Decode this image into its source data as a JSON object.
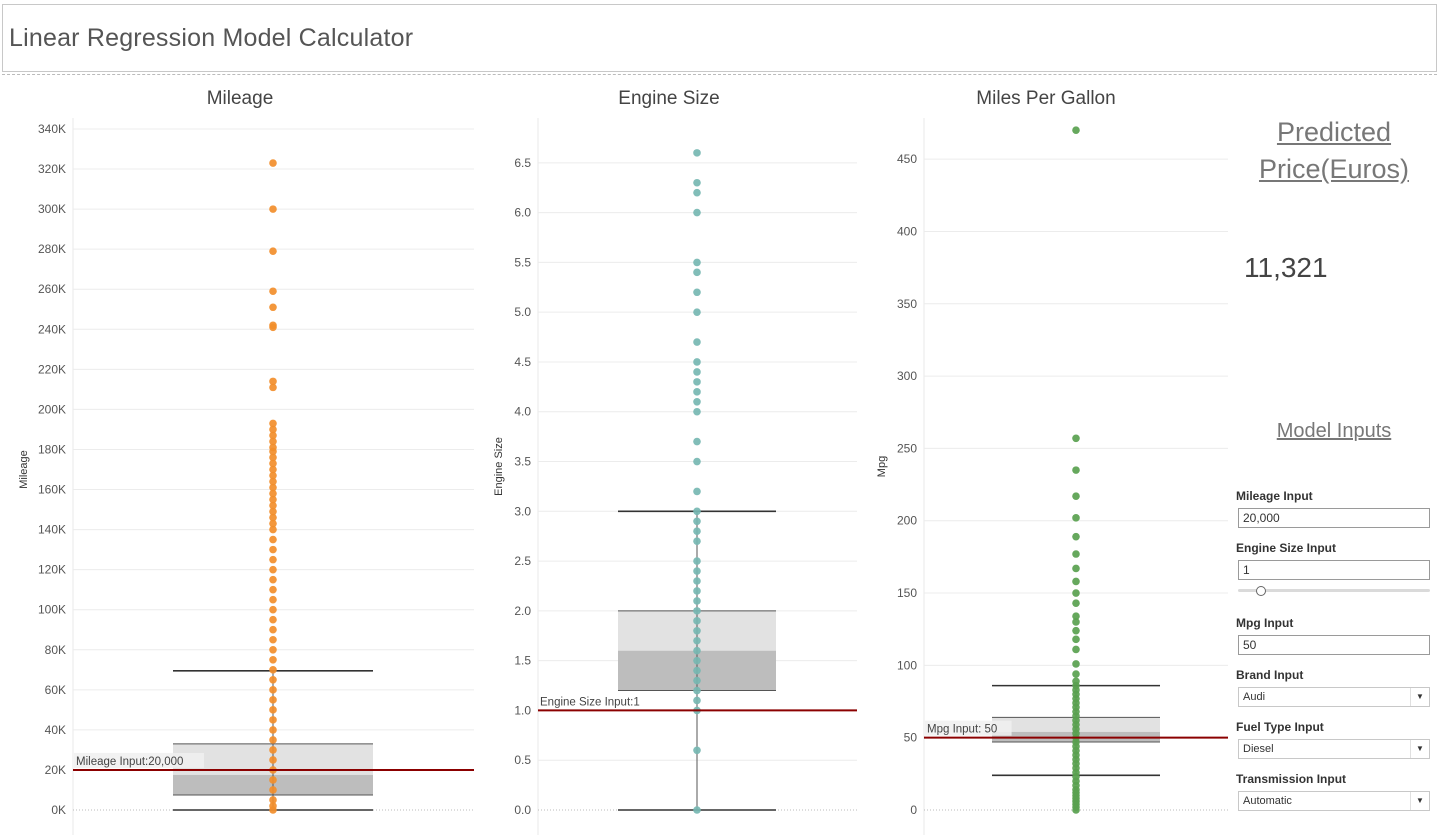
{
  "app_title": "Linear Regression Model Calculator",
  "chart_data": [
    {
      "type": "box",
      "title": "Mileage",
      "ylabel": "Mileage",
      "ylim": [
        0,
        340000
      ],
      "y_ticks": [
        0,
        20000,
        40000,
        60000,
        80000,
        100000,
        120000,
        140000,
        160000,
        180000,
        200000,
        220000,
        240000,
        260000,
        280000,
        300000,
        320000,
        340000
      ],
      "y_tick_labels": [
        "0K",
        "20K",
        "40K",
        "60K",
        "80K",
        "100K",
        "120K",
        "140K",
        "160K",
        "180K",
        "200K",
        "220K",
        "240K",
        "260K",
        "280K",
        "300K",
        "320K",
        "340K"
      ],
      "point_color": "#f28e2b",
      "box": {
        "min": 0,
        "q1": 7500,
        "median": 17500,
        "q3": 33000,
        "max": 69500
      },
      "points": [
        0,
        2000,
        5000,
        10000,
        15000,
        20000,
        25000,
        30000,
        35000,
        40000,
        45000,
        50000,
        55000,
        60000,
        65000,
        70000,
        75000,
        80000,
        85000,
        90000,
        95000,
        100000,
        105000,
        110000,
        115000,
        120000,
        125000,
        130000,
        135000,
        140000,
        143000,
        146000,
        149000,
        152000,
        155000,
        158000,
        161000,
        164000,
        167000,
        170000,
        173000,
        176000,
        179000,
        181000,
        184000,
        187000,
        190000,
        193000,
        211000,
        214000,
        241000,
        242000,
        251000,
        259000,
        279000,
        300000,
        323000
      ],
      "reference_line": {
        "value": 20000,
        "label": "Mileage Input:20,000",
        "color": "#8b0000"
      }
    },
    {
      "type": "box",
      "title": "Engine Size",
      "ylabel": "Engine Size",
      "ylim": [
        0,
        6.9
      ],
      "y_ticks": [
        0,
        0.5,
        1,
        1.5,
        2,
        2.5,
        3,
        3.5,
        4,
        4.5,
        5,
        5.5,
        6,
        6.5
      ],
      "y_tick_labels": [
        "0.0",
        "0.5",
        "1.0",
        "1.5",
        "2.0",
        "2.5",
        "3.0",
        "3.5",
        "4.0",
        "4.5",
        "5.0",
        "5.5",
        "6.0",
        "6.5"
      ],
      "point_color": "#76b7b2",
      "box": {
        "min": 0,
        "q1": 1.2,
        "median": 1.6,
        "q3": 2.0,
        "max": 3.0
      },
      "points": [
        0,
        0.6,
        1.0,
        1.1,
        1.2,
        1.3,
        1.4,
        1.5,
        1.6,
        1.7,
        1.8,
        1.9,
        2.0,
        2.1,
        2.2,
        2.3,
        2.4,
        2.5,
        2.7,
        2.8,
        2.9,
        3.0,
        3.2,
        3.5,
        3.7,
        4.0,
        4.1,
        4.2,
        4.3,
        4.4,
        4.5,
        4.7,
        5.0,
        5.2,
        5.4,
        5.5,
        6.0,
        6.2,
        6.3,
        6.6
      ],
      "reference_line": {
        "value": 1,
        "label": "Engine Size Input:1",
        "color": "#8b0000"
      }
    },
    {
      "type": "box",
      "title": "Miles Per Gallon",
      "ylabel": "Mpg",
      "ylim": [
        0,
        475
      ],
      "y_ticks": [
        0,
        50,
        100,
        150,
        200,
        250,
        300,
        350,
        400,
        450
      ],
      "y_tick_labels": [
        "0",
        "50",
        "100",
        "150",
        "200",
        "250",
        "300",
        "350",
        "400",
        "450"
      ],
      "point_color": "#59a14f",
      "box": {
        "min": 24,
        "q1": 47,
        "median": 54,
        "q3": 64,
        "max": 86
      },
      "points": [
        0,
        2,
        4,
        6,
        8,
        10,
        12,
        14,
        17,
        20,
        23,
        26,
        29,
        32,
        35,
        38,
        41,
        44,
        47,
        50,
        53,
        56,
        59,
        62,
        65,
        68,
        71,
        74,
        77,
        80,
        83,
        86,
        89,
        94,
        101,
        111,
        118,
        124,
        130,
        134,
        143,
        150,
        158,
        167,
        177,
        189,
        202,
        217,
        235,
        257,
        470
      ],
      "reference_line": {
        "value": 50,
        "label": "Mpg Input: 50",
        "color": "#8b0000"
      }
    }
  ],
  "predicted": {
    "title_line1": "Predicted",
    "title_line2": "Price(Euros)",
    "value": "11,321"
  },
  "model_inputs": {
    "title": "Model Inputs",
    "mileage_label": "Mileage Input",
    "mileage_value": "20,000",
    "engine_label": "Engine Size Input",
    "engine_value": "1",
    "engine_slider_fraction": 0.12,
    "mpg_label": "Mpg Input",
    "mpg_value": "50",
    "brand_label": "Brand Input",
    "brand_value": "Audi",
    "fuel_label": "Fuel Type Input",
    "fuel_value": "Diesel",
    "transmission_label": "Transmission Input",
    "transmission_value": "Automatic",
    "dropdown_icon": "triangle-down-icon"
  },
  "colors": {
    "reference": "#8b0000",
    "box_light": "#e2e2e2",
    "box_dark": "#bdbdbd",
    "whisker": "#333333"
  }
}
